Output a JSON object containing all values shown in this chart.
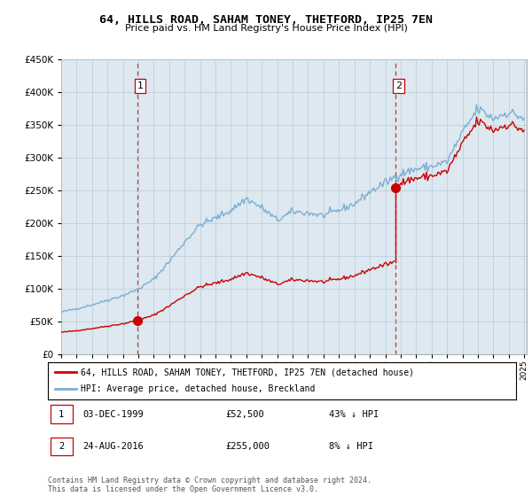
{
  "title": "64, HILLS ROAD, SAHAM TONEY, THETFORD, IP25 7EN",
  "subtitle": "Price paid vs. HM Land Registry's House Price Index (HPI)",
  "sale1_date_str": "1999-12-03",
  "sale1_label": "1",
  "sale1_price": 52500,
  "sale2_date_str": "2016-08-24",
  "sale2_label": "2",
  "sale2_price": 255000,
  "legend_line1": "64, HILLS ROAD, SAHAM TONEY, THETFORD, IP25 7EN (detached house)",
  "legend_line2": "HPI: Average price, detached house, Breckland",
  "table_row1_date": "03-DEC-1999",
  "table_row1_price": "£52,500",
  "table_row1_pct": "43% ↓ HPI",
  "table_row2_date": "24-AUG-2016",
  "table_row2_price": "£255,000",
  "table_row2_pct": "8% ↓ HPI",
  "footer": "Contains HM Land Registry data © Crown copyright and database right 2024.\nThis data is licensed under the Open Government Licence v3.0.",
  "sale_color": "#cc0000",
  "hpi_color": "#7bafd4",
  "vline_color": "#cc0000",
  "plot_bg_color": "#dde8f0",
  "ylim": [
    0,
    450000
  ],
  "yticks": [
    0,
    50000,
    100000,
    150000,
    200000,
    250000,
    300000,
    350000,
    400000,
    450000
  ],
  "background_color": "#ffffff",
  "grid_color": "#b8ccd8",
  "hpi_key_points": {
    "1995": 65000,
    "1996": 70000,
    "1997": 76000,
    "1998": 83000,
    "1999": 90000,
    "2000": 100000,
    "2001": 115000,
    "2002": 142000,
    "2003": 172000,
    "2004": 198000,
    "2005": 208000,
    "2006": 220000,
    "2007": 238000,
    "2008": 224000,
    "2009": 205000,
    "2010": 218000,
    "2011": 216000,
    "2012": 212000,
    "2013": 220000,
    "2014": 230000,
    "2015": 248000,
    "2016": 262000,
    "2017": 276000,
    "2018": 283000,
    "2019": 287000,
    "2020": 294000,
    "2021": 338000,
    "2022": 375000,
    "2023": 360000,
    "2024": 370000,
    "2025": 360000
  }
}
